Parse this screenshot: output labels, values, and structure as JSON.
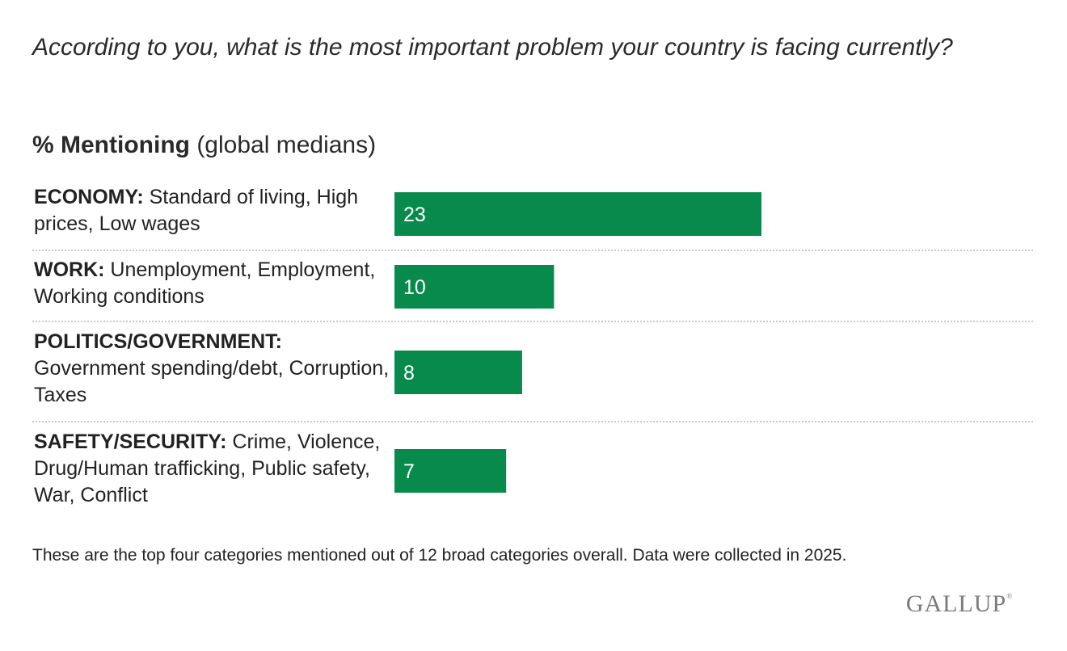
{
  "header": {
    "question": "According to you, what is the most important problem your country is facing currently?",
    "subtitle_bold": "% Mentioning",
    "subtitle_rest": " (global medians)"
  },
  "chart_data": {
    "type": "bar",
    "orientation": "horizontal",
    "title": "% Mentioning (global medians)",
    "categories": [
      "ECONOMY: Standard of living, High prices, Low wages",
      "WORK: Unemployment, Employment, Working conditions",
      "POLITICS/GOVERNMENT: Government spending/debt, Corruption, Taxes",
      "SAFETY/SECURITY: Crime, Violence, Drug/Human trafficking, Public safety, War, Conflict"
    ],
    "category_heads": [
      "ECONOMY:",
      "WORK:",
      "POLITICS/GOVERNMENT:",
      "SAFETY/SECURITY:"
    ],
    "category_details": [
      " Standard of living, High prices, Low wages",
      " Unemployment, Employment, Working conditions",
      " Government spending/debt, Corruption, Taxes",
      " Crime, Violence, Drug/Human trafficking, Public safety, War, Conflict"
    ],
    "values": [
      23,
      10,
      8,
      7
    ],
    "data_labels": [
      "23",
      "10",
      "8",
      "7"
    ],
    "bar_color": "#078a4b",
    "xlabel": "",
    "ylabel": "",
    "xlim": [
      0,
      23
    ]
  },
  "footnote": "These are the top four categories mentioned out of 12 broad categories overall. Data were collected in 2025.",
  "logo": {
    "text": "GALLUP",
    "mark": "®"
  }
}
